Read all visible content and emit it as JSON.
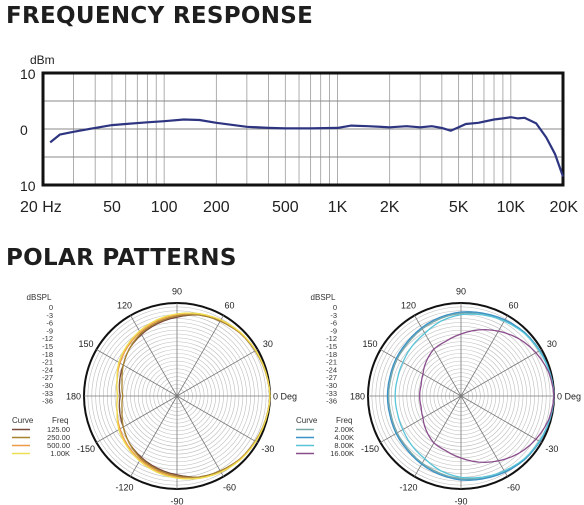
{
  "sections": {
    "frequency_title": "FREQUENCY RESPONSE",
    "polar_title": "POLAR PATTERNS"
  },
  "chart_data": [
    {
      "type": "line",
      "title": "FREQUENCY RESPONSE",
      "ylabel": "dBm",
      "xlabel": "",
      "x_scale": "log",
      "xlim": [
        20,
        20000
      ],
      "ylim": [
        -10,
        10
      ],
      "grid": true,
      "x_tick_labels": [
        {
          "value": 20,
          "label": "20 Hz"
        },
        {
          "value": 50,
          "label": "50"
        },
        {
          "value": 100,
          "label": "100"
        },
        {
          "value": 200,
          "label": "200"
        },
        {
          "value": 500,
          "label": "500"
        },
        {
          "value": 1000,
          "label": "1K"
        },
        {
          "value": 2000,
          "label": "2K"
        },
        {
          "value": 5000,
          "label": "5K"
        },
        {
          "value": 10000,
          "label": "10K"
        },
        {
          "value": 20000,
          "label": "20K"
        }
      ],
      "y_tick_labels": [
        {
          "value": 10,
          "label": "10"
        },
        {
          "value": 0,
          "label": "0"
        },
        {
          "value": -10,
          "label": "10"
        }
      ],
      "series": [
        {
          "color": "#2e3580",
          "x": [
            22,
            25,
            30,
            40,
            50,
            60,
            80,
            100,
            130,
            160,
            200,
            300,
            400,
            500,
            700,
            1000,
            1200,
            1500,
            2000,
            2500,
            3000,
            3500,
            4000,
            4500,
            5000,
            5500,
            6500,
            8000,
            9000,
            10000,
            11000,
            12000,
            14000,
            16000,
            18000,
            20000
          ],
          "y": [
            -2.4,
            -1.0,
            -0.5,
            0.2,
            0.7,
            0.9,
            1.2,
            1.4,
            1.7,
            1.6,
            1.1,
            0.4,
            0.2,
            0.1,
            0.1,
            0.2,
            0.6,
            0.5,
            0.3,
            0.5,
            0.3,
            0.5,
            0.2,
            -0.3,
            0.3,
            0.9,
            1.1,
            1.7,
            1.9,
            2.1,
            1.9,
            2.0,
            1.0,
            -1.5,
            -4.5,
            -8.5
          ]
        }
      ]
    },
    {
      "type": "polar",
      "title": "",
      "r_label": "dBSPL",
      "r_tick_labels": [
        "0",
        "-3",
        "-6",
        "-9",
        "-12",
        "-15",
        "-18",
        "-21",
        "-24",
        "-27",
        "-30",
        "-33",
        "-36"
      ],
      "angle_labels": [
        "90",
        "60",
        "30",
        "0 Deg",
        "-30",
        "-60",
        "-90",
        "-120",
        "-150",
        "180",
        "150",
        "120"
      ],
      "legend": {
        "headers": [
          "Curve",
          "Freq"
        ],
        "position": "bottom-left"
      },
      "series": [
        {
          "name": "125.00",
          "color": "#7a4a3c",
          "r_db": [
            0,
            -0.5,
            -1,
            -1.5,
            -2.5,
            -3.5,
            -5.5,
            -7,
            -8.5,
            -10,
            -12,
            -13,
            -14
          ]
        },
        {
          "name": "250.00",
          "color": "#a8842e",
          "r_db": [
            0,
            -0.5,
            -1,
            -1.5,
            -2.5,
            -3.5,
            -5,
            -6.5,
            -8,
            -10,
            -12,
            -14,
            -15
          ]
        },
        {
          "name": "500.00",
          "color": "#ec9b46",
          "r_db": [
            0,
            -0.4,
            -0.8,
            -1.3,
            -2,
            -3,
            -4.5,
            -6,
            -7.5,
            -9,
            -10.5,
            -12,
            -13
          ]
        },
        {
          "name": "1.00K",
          "color": "#eedf52",
          "r_db": [
            0,
            -0.4,
            -0.8,
            -1.2,
            -2,
            -3,
            -4.2,
            -5.5,
            -7,
            -8.5,
            -10,
            -12,
            -13
          ]
        }
      ]
    },
    {
      "type": "polar",
      "title": "",
      "r_label": "dBSPL",
      "r_tick_labels": [
        "0",
        "-3",
        "-6",
        "-9",
        "-12",
        "-15",
        "-18",
        "-21",
        "-24",
        "-27",
        "-30",
        "-33",
        "-36"
      ],
      "angle_labels": [
        "90",
        "60",
        "30",
        "0 Deg",
        "-30",
        "-60",
        "-90",
        "-120",
        "-150",
        "180",
        "150",
        "120"
      ],
      "legend": {
        "headers": [
          "Curve",
          "Freq"
        ],
        "position": "bottom-left"
      },
      "series": [
        {
          "name": "2.00K",
          "color": "#7aa8a8",
          "r_db": [
            0,
            -0.4,
            -0.8,
            -1.2,
            -2,
            -3,
            -4,
            -5,
            -6,
            -7,
            -7.5,
            -8,
            -8
          ]
        },
        {
          "name": "4.00K",
          "color": "#3a92c6",
          "r_db": [
            0,
            -0.4,
            -0.8,
            -1.2,
            -2,
            -2.8,
            -3.5,
            -4.5,
            -5.5,
            -6.5,
            -7,
            -7.5,
            -7.5
          ]
        },
        {
          "name": "8.00K",
          "color": "#58c4d8",
          "r_db": [
            0,
            -0.5,
            -1,
            -1.5,
            -2.5,
            -3.5,
            -4.5,
            -6,
            -8,
            -9,
            -10,
            -10.5,
            -10.5
          ]
        },
        {
          "name": "16.00K",
          "color": "#8a4e8c",
          "r_db": [
            0,
            -0.8,
            -2.5,
            -4.5,
            -7,
            -9.5,
            -12,
            -14,
            -15,
            -17,
            -19,
            -20,
            -20
          ]
        }
      ]
    }
  ]
}
